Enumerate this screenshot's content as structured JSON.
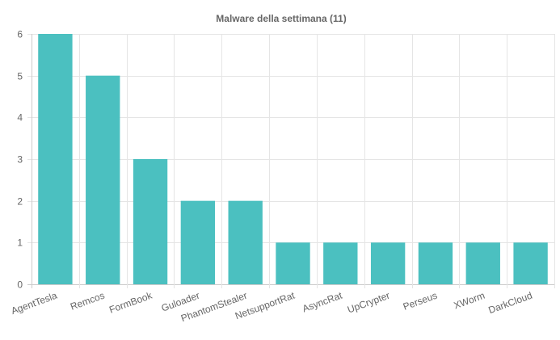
{
  "chart_data": {
    "type": "bar",
    "title": "Malware della settimana (11)",
    "categories": [
      "AgentTesla",
      "Remcos",
      "FormBook",
      "Guloader",
      "PhantomStealer",
      "NetsupportRat",
      "AsyncRat",
      "UpCrypter",
      "Perseus",
      "XWorm",
      "DarkCloud"
    ],
    "values": [
      6,
      5,
      3,
      2,
      2,
      1,
      1,
      1,
      1,
      1,
      1
    ],
    "xlabel": "",
    "ylabel": "",
    "ylim": [
      0,
      6
    ],
    "yticks": [
      0,
      1,
      2,
      3,
      4,
      5,
      6
    ],
    "grid": true,
    "bar_color": "#4bc0c0",
    "grid_color": "#e5e5e5",
    "text_color": "#666666"
  }
}
